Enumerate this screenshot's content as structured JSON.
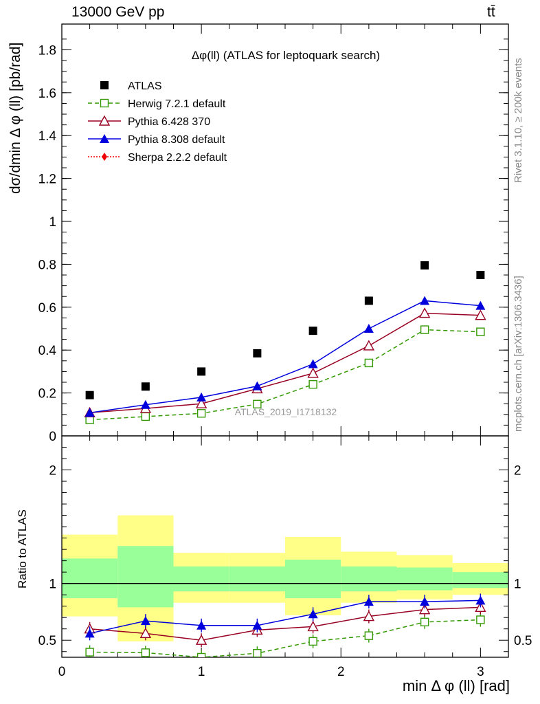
{
  "header": {
    "left": "13000 GeV pp",
    "right": "tt̄"
  },
  "side_labels": {
    "rivet": "Rivet 3.1.10, ≥ 200k events",
    "mcplots": "mcplots.cern.ch [arXiv:1306.3436]"
  },
  "chart_data": [
    {
      "type": "scatter",
      "title": "Δφ(ll) (ATLAS for leptoquark search)",
      "watermark": "ATLAS_2019_I1718132",
      "xlabel": "min Δ φ (ll) [rad]",
      "ylabel": "dσ/dmin Δ φ (ll) [pb/rad]",
      "xlim": [
        0,
        3.2
      ],
      "ylim": [
        0,
        1.92
      ],
      "yticks": [
        0,
        0.2,
        0.4,
        0.6,
        0.8,
        1,
        1.2,
        1.4,
        1.6,
        1.8
      ],
      "x": [
        0.2,
        0.6,
        1.0,
        1.4,
        1.8,
        2.2,
        2.6,
        3.0
      ],
      "legend_placement": "top-left",
      "series": [
        {
          "name": "ATLAS",
          "color": "#000000",
          "marker": "square-filled",
          "values": [
            0.19,
            0.23,
            0.3,
            0.385,
            0.49,
            0.63,
            0.795,
            0.75
          ]
        },
        {
          "name": "Herwig 7.2.1 default",
          "color": "#339900",
          "marker": "square-open",
          "line": "dashed",
          "values": [
            0.075,
            0.09,
            0.105,
            0.148,
            0.24,
            0.34,
            0.495,
            0.485
          ]
        },
        {
          "name": "Pythia 6.428 370",
          "color": "#990022",
          "marker": "triangle-open",
          "line": "solid",
          "values": [
            0.108,
            0.128,
            0.15,
            0.22,
            0.292,
            0.42,
            0.572,
            0.562
          ]
        },
        {
          "name": "Pythia 8.308 default",
          "color": "#0000dd",
          "marker": "triangle-filled",
          "line": "solid",
          "values": [
            0.108,
            0.145,
            0.18,
            0.232,
            0.335,
            0.5,
            0.63,
            0.607
          ]
        },
        {
          "name": "Sherpa 2.2.2 default",
          "color": "#ee0000",
          "marker": "diamond-filled",
          "line": "dotted",
          "values": []
        }
      ]
    },
    {
      "type": "scatter",
      "ylabel": "Ratio to ATLAS",
      "xlabel": "min Δ φ (ll) [rad]",
      "xlim": [
        0,
        3.2
      ],
      "ylim": [
        0.35,
        2.3
      ],
      "yticks": [
        0.5,
        1,
        2
      ],
      "xticks": [
        0,
        1,
        2,
        3
      ],
      "x": [
        0.2,
        0.6,
        1.0,
        1.4,
        1.8,
        2.2,
        2.6,
        3.0
      ],
      "bands": {
        "edges": [
          0,
          0.4,
          0.8,
          1.2,
          1.6,
          2.0,
          2.4,
          2.8,
          3.2
        ],
        "yellow": [
          [
            0.71,
            1.43
          ],
          [
            0.49,
            1.6
          ],
          [
            0.83,
            1.27
          ],
          [
            0.83,
            1.27
          ],
          [
            0.72,
            1.41
          ],
          [
            0.83,
            1.28
          ],
          [
            0.86,
            1.25
          ],
          [
            0.9,
            1.18
          ]
        ],
        "green": [
          [
            0.87,
            1.22
          ],
          [
            0.79,
            1.33
          ],
          [
            0.93,
            1.15
          ],
          [
            0.93,
            1.15
          ],
          [
            0.87,
            1.21
          ],
          [
            0.93,
            1.15
          ],
          [
            0.94,
            1.14
          ],
          [
            0.96,
            1.1
          ]
        ]
      },
      "series": [
        {
          "name": "Herwig 7.2.1 default",
          "color": "#339900",
          "values": [
            0.395,
            0.39,
            0.35,
            0.385,
            0.49,
            0.54,
            0.66,
            0.68
          ]
        },
        {
          "name": "Pythia 6.428 370",
          "color": "#990022",
          "values": [
            0.6,
            0.56,
            0.5,
            0.59,
            0.62,
            0.71,
            0.77,
            0.79
          ]
        },
        {
          "name": "Pythia 8.308 default",
          "color": "#0000dd",
          "values": [
            0.56,
            0.67,
            0.63,
            0.63,
            0.73,
            0.84,
            0.84,
            0.85
          ]
        }
      ]
    }
  ]
}
